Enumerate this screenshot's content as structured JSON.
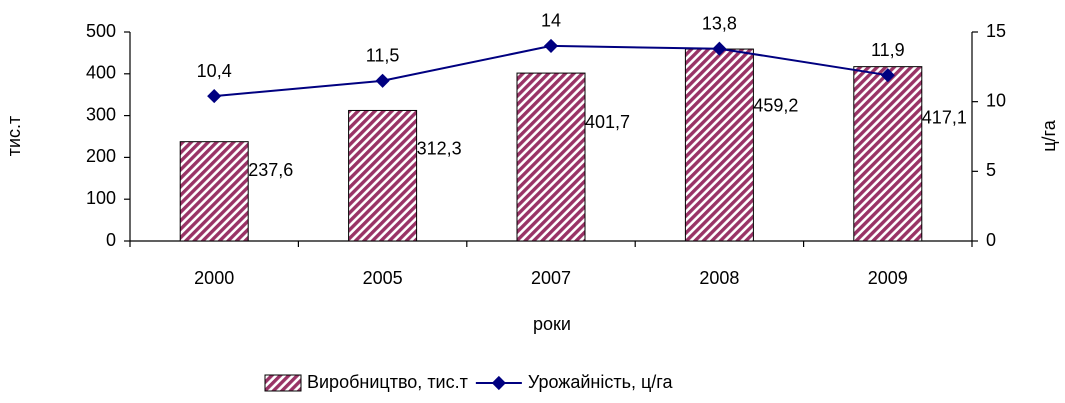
{
  "chart_data": {
    "type": "bar",
    "categories": [
      "2000",
      "2005",
      "2007",
      "2008",
      "2009"
    ],
    "x_label": "роки",
    "y_label": "тис.т",
    "y2_label": "ц/га",
    "ylim": [
      0,
      500
    ],
    "yticks": [
      0,
      100,
      200,
      300,
      400,
      500
    ],
    "y2lim": [
      0,
      15
    ],
    "y2ticks": [
      0,
      5,
      10,
      15
    ],
    "series": [
      {
        "name": "Виробництво, тис.т",
        "type": "bar",
        "color": "#993366",
        "values": [
          237.6,
          312.3,
          401.7,
          459.2,
          417.1
        ],
        "value_labels": [
          "237,6",
          "312,3",
          "401,7",
          "459,2",
          "417,1"
        ]
      },
      {
        "name": "Урожайність, ц/га",
        "type": "line",
        "axis": "y2",
        "color": "#000080",
        "values": [
          10.4,
          11.5,
          14,
          13.8,
          11.9
        ],
        "value_labels": [
          "10,4",
          "11,5",
          "14",
          "13,8",
          "11,9"
        ]
      }
    ],
    "legend": "bottom"
  }
}
